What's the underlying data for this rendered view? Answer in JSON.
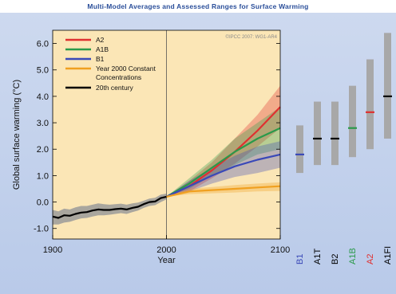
{
  "title": "Multi-Model Averages and Assessed Ranges for Surface Warming",
  "credit": "©IPCC 2007: WG1-AR4",
  "colors": {
    "A2": "#e03030",
    "A1B": "#2a9a4a",
    "B1": "#3a49b8",
    "constant": "#f0a020",
    "century20": "#000000",
    "plot_bg": "#fbe6b6",
    "range_bar": "#a8a8a8"
  },
  "chart_data": {
    "type": "line",
    "xlabel": "Year",
    "ylabel": "Global surface warming (°C)",
    "xlim": [
      1900,
      2100
    ],
    "ylim": [
      -1.4,
      6.5
    ],
    "xticks": [
      "1900",
      "2000",
      "2100"
    ],
    "yticks": [
      "-1.0",
      "0.0",
      "1.0",
      "2.0",
      "3.0",
      "4.0",
      "5.0",
      "6.0"
    ],
    "legend": [
      "A2",
      "A1B",
      "B1",
      "Year 2000 Constant Concentrations",
      "20th century"
    ],
    "legend_position": "top-left",
    "series": [
      {
        "name": "A2",
        "color_key": "A2",
        "x": [
          2000,
          2020,
          2040,
          2060,
          2080,
          2100
        ],
        "values": [
          0.2,
          0.6,
          1.2,
          1.9,
          2.7,
          3.6
        ],
        "band_low": [
          0.2,
          0.4,
          0.9,
          1.45,
          2.1,
          2.8
        ],
        "band_high": [
          0.2,
          0.8,
          1.5,
          2.4,
          3.3,
          4.4
        ]
      },
      {
        "name": "A1B",
        "color_key": "A1B",
        "x": [
          2000,
          2020,
          2040,
          2060,
          2080,
          2100
        ],
        "values": [
          0.2,
          0.7,
          1.3,
          1.9,
          2.4,
          2.8
        ],
        "band_low": [
          0.2,
          0.5,
          1.0,
          1.4,
          1.8,
          2.0
        ],
        "band_high": [
          0.2,
          0.9,
          1.6,
          2.4,
          3.0,
          3.6
        ]
      },
      {
        "name": "B1",
        "color_key": "B1",
        "x": [
          2000,
          2020,
          2040,
          2060,
          2080,
          2100
        ],
        "values": [
          0.2,
          0.6,
          1.0,
          1.35,
          1.6,
          1.8
        ],
        "band_low": [
          0.2,
          0.4,
          0.7,
          0.95,
          1.1,
          1.3
        ],
        "band_high": [
          0.2,
          0.8,
          1.3,
          1.75,
          2.1,
          2.3
        ]
      },
      {
        "name": "Year 2000 Constant Concentrations",
        "color_key": "constant",
        "x": [
          2000,
          2020,
          2040,
          2060,
          2080,
          2100
        ],
        "values": [
          0.2,
          0.4,
          0.45,
          0.5,
          0.55,
          0.6
        ],
        "band_low": [
          0.2,
          0.3,
          0.33,
          0.36,
          0.4,
          0.42
        ],
        "band_high": [
          0.2,
          0.5,
          0.57,
          0.64,
          0.7,
          0.75
        ]
      },
      {
        "name": "20th century",
        "color_key": "century20",
        "x": [
          1900,
          1905,
          1910,
          1915,
          1920,
          1925,
          1930,
          1935,
          1940,
          1945,
          1950,
          1955,
          1960,
          1965,
          1970,
          1975,
          1980,
          1985,
          1990,
          1995,
          2000
        ],
        "values": [
          -0.55,
          -0.6,
          -0.5,
          -0.52,
          -0.45,
          -0.4,
          -0.38,
          -0.32,
          -0.28,
          -0.3,
          -0.3,
          -0.27,
          -0.25,
          -0.28,
          -0.22,
          -0.18,
          -0.08,
          0.0,
          0.02,
          0.15,
          0.2
        ],
        "band_low": [
          -0.85,
          -0.85,
          -0.78,
          -0.75,
          -0.68,
          -0.62,
          -0.6,
          -0.55,
          -0.5,
          -0.5,
          -0.48,
          -0.45,
          -0.42,
          -0.45,
          -0.38,
          -0.32,
          -0.22,
          -0.15,
          -0.12,
          0.0,
          0.1
        ],
        "band_high": [
          -0.3,
          -0.35,
          -0.25,
          -0.28,
          -0.2,
          -0.15,
          -0.15,
          -0.1,
          -0.05,
          -0.08,
          -0.1,
          -0.08,
          -0.06,
          -0.1,
          -0.05,
          -0.02,
          0.05,
          0.13,
          0.16,
          0.28,
          0.32
        ]
      }
    ],
    "likely_ranges": [
      {
        "label": "B1",
        "color_key": "B1",
        "low": 1.1,
        "high": 2.9,
        "best": 1.8
      },
      {
        "label": "A1T",
        "color_key": "century20",
        "low": 1.4,
        "high": 3.8,
        "best": 2.4
      },
      {
        "label": "B2",
        "color_key": "century20",
        "low": 1.4,
        "high": 3.8,
        "best": 2.4
      },
      {
        "label": "A1B",
        "color_key": "A1B",
        "low": 1.7,
        "high": 4.4,
        "best": 2.8
      },
      {
        "label": "A2",
        "color_key": "A2",
        "low": 2.0,
        "high": 5.4,
        "best": 3.4
      },
      {
        "label": "A1FI",
        "color_key": "century20",
        "low": 2.4,
        "high": 6.4,
        "best": 4.0
      }
    ]
  }
}
